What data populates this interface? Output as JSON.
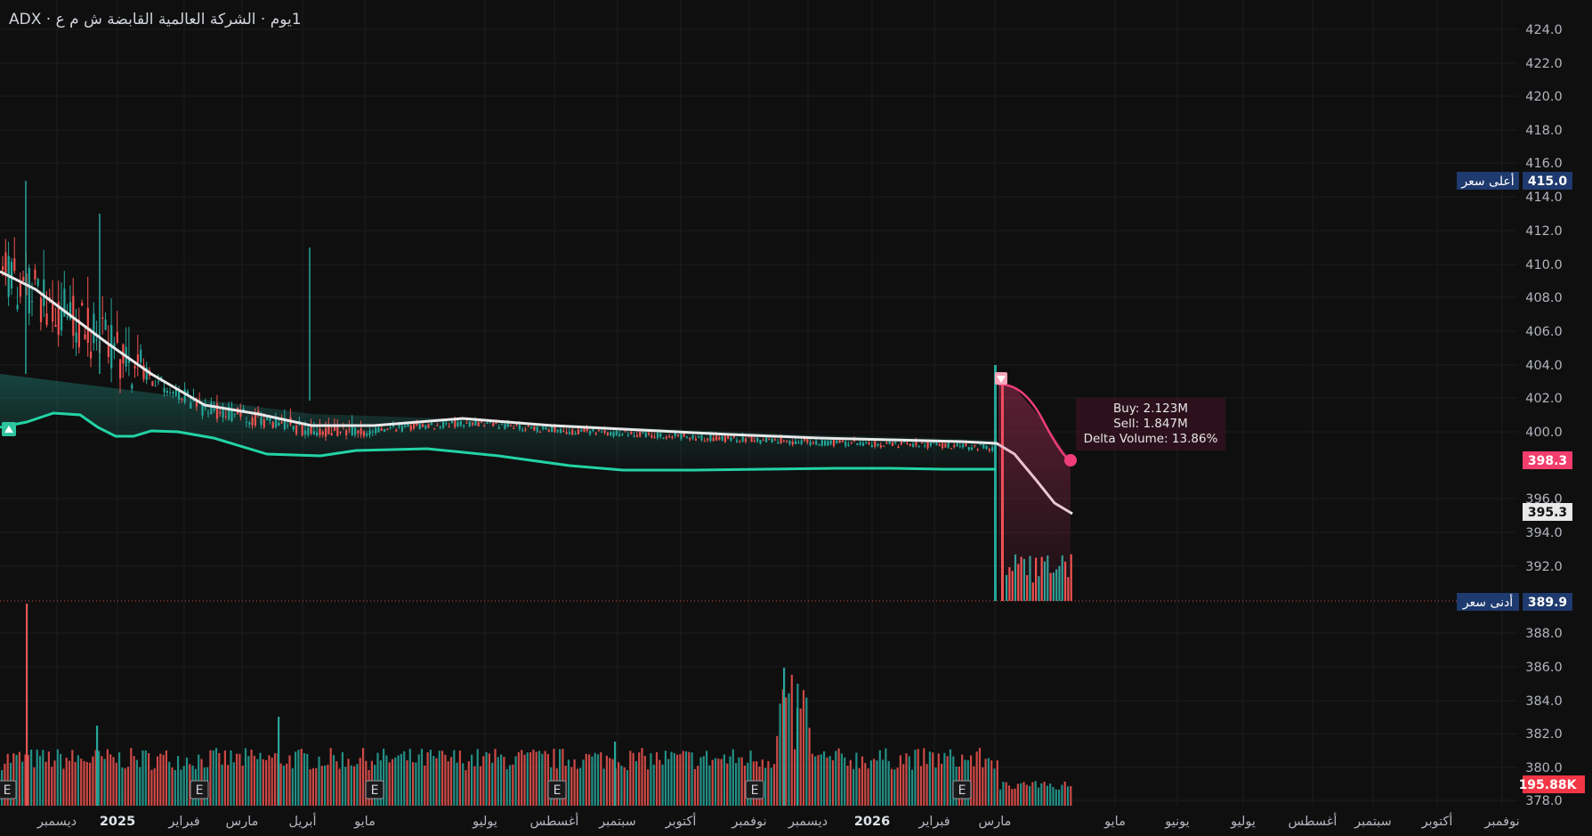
{
  "header": {
    "symbol": "ADX",
    "separator": "·",
    "name": "الشركة العالمية القابضة ش م ع",
    "interval": "1يوم"
  },
  "colors": {
    "background": "#0f0f0f",
    "grid": "#1c1c1c",
    "axis_text": "#b2b5be",
    "up": "#26a69a",
    "down": "#ef5350",
    "ma": "#e8e8e8",
    "band": "#22d3a5",
    "forecast": "#ef3d7a",
    "high_label_bg": "#1e3a6e",
    "last_price_bg": "#f23d6d",
    "volume_label_bg": "#f23645"
  },
  "price_axis": {
    "ticks": [
      "424.0",
      "422.0",
      "420.0",
      "418.0",
      "416.0",
      "414.0",
      "412.0",
      "410.0",
      "408.0",
      "406.0",
      "404.0",
      "402.0",
      "400.0",
      "396.0",
      "394.0",
      "392.0",
      "388.0",
      "386.0",
      "384.0",
      "382.0",
      "380.0",
      "378.0"
    ]
  },
  "time_axis": {
    "labels": [
      "ديسمبر",
      "2025",
      "فبراير",
      "مارس",
      "أبريل",
      "مايو",
      "يوليو",
      "أغسطس",
      "سبتمبر",
      "أكتوبر",
      "نوفمبر",
      "ديسمبر",
      "2026",
      "فبراير",
      "مارس",
      "مايو",
      "يونيو",
      "يوليو",
      "أغسطس",
      "سبتمبر",
      "أكتوبر",
      "نوفمبر"
    ],
    "bold": [
      "2025",
      "2026"
    ]
  },
  "markers": {
    "high": {
      "label": "أعلى سعر",
      "value": "415.0"
    },
    "low": {
      "label": "أدنى سعر",
      "value": "389.9"
    },
    "last_price": "398.3",
    "ma_value": "395.3",
    "volume": "195.88K",
    "earnings_letter": "E"
  },
  "tooltip": {
    "buy": "Buy: 2.123M",
    "sell": "Sell: 1.847M",
    "delta": "Delta Volume: 13.86%"
  },
  "chart_data": {
    "type": "candlestick",
    "title": "",
    "y_range": [
      378,
      425
    ],
    "scale_breaks": [
      "396–400",
      "388–392"
    ],
    "series": [
      {
        "name": "moving-average",
        "values_approx": [
          409.5,
          408.5,
          405.0,
          403.0,
          401.6,
          400.8,
          400.6,
          400.8,
          400.5,
          400.2,
          399.8,
          399.5,
          399.3,
          399.0,
          395.3
        ]
      },
      {
        "name": "lower-band",
        "values_approx": [
          400.5,
          401.0,
          399.5,
          400.0,
          398.8,
          398.5,
          398.8,
          399.0,
          398.0,
          397.8,
          397.8,
          397.8,
          397.8,
          397.8
        ]
      },
      {
        "name": "forecast",
        "values_approx": [
          403.0,
          401.5,
          398.3
        ]
      }
    ],
    "high": 415.0,
    "low": 389.9,
    "last": 398.3,
    "volume_last": "195.88K",
    "grid": true,
    "legend": "none"
  }
}
